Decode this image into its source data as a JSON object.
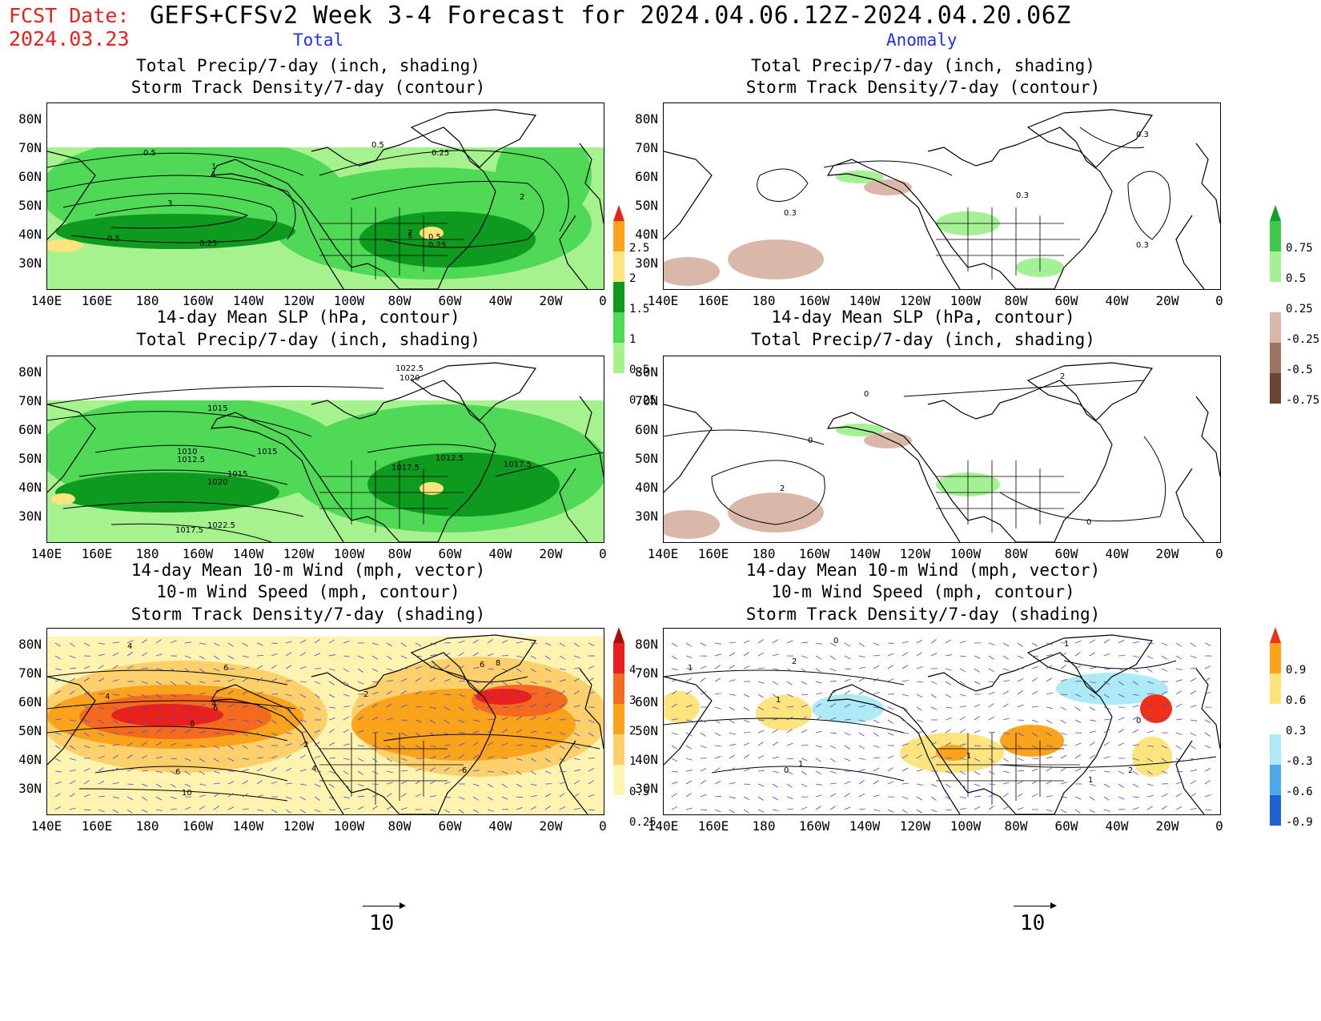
{
  "header": {
    "fcst_label": "FCST Date:",
    "fcst_date": "2024.03.23",
    "title": "GEFS+CFSv2 Week 3-4 Forecast for 2024.04.06.12Z-2024.04.20.06Z",
    "col_total": "Total",
    "col_anomaly": "Anomaly"
  },
  "axes": {
    "lat_labels": [
      "80N",
      "70N",
      "60N",
      "50N",
      "40N",
      "30N"
    ],
    "lon_labels": [
      "140E",
      "160E",
      "180",
      "160W",
      "140W",
      "120W",
      "100W",
      "80W",
      "60W",
      "40W",
      "20W",
      "0"
    ]
  },
  "panels": {
    "p1": {
      "title1": "Total Precip/7-day (inch, shading)",
      "title2": "Storm Track Density/7-day (contour)"
    },
    "p2": {
      "title1": "Total Precip/7-day (inch, shading)",
      "title2": "Storm Track Density/7-day (contour)"
    },
    "p3": {
      "title1": "14-day Mean SLP (hPa, contour)",
      "title2": "Total Precip/7-day (inch, shading)"
    },
    "p4": {
      "title1": "14-day Mean SLP (hPa, contour)",
      "title2": "Total Precip/7-day (inch, shading)"
    },
    "p5": {
      "title1": "14-day Mean 10-m Wind (mph, vector)",
      "title2": "10-m Wind Speed (mph, contour)",
      "title3": "Storm Track Density/7-day (shading)"
    },
    "p6": {
      "title1": "14-day Mean 10-m Wind (mph, vector)",
      "title2": "10-m Wind Speed (mph, contour)",
      "title3": "Storm Track Density/7-day (shading)"
    }
  },
  "colorbars": {
    "precip_total": {
      "labels": [
        "2.5",
        "2",
        "1.5",
        "1",
        "0.5",
        "0.25"
      ],
      "colors": [
        "#e8201e",
        "#fba31b",
        "#fde47d",
        "#0e9a1e",
        "#4fd957",
        "#a6f28e",
        "#ffffff"
      ]
    },
    "precip_anom": {
      "labels": [
        "0.75",
        "0.5",
        "0.25",
        "-0.25",
        "-0.5",
        "-0.75"
      ],
      "colors": [
        "#169e2a",
        "#3ec94a",
        "#a4f094",
        "#ffffff",
        "#d9b8aa",
        "#9e7362",
        "#6b4433"
      ]
    },
    "storm_total": {
      "labels": [
        "4",
        "3",
        "2",
        "1",
        "0.5",
        "0.25"
      ],
      "colors": [
        "#a4120c",
        "#e8201e",
        "#f46a1f",
        "#fba31b",
        "#fdd06b",
        "#fef4b0",
        "#ffffff"
      ]
    },
    "storm_anom": {
      "labels": [
        "0.9",
        "0.6",
        "0.3",
        "-0.3",
        "-0.6",
        "-0.9"
      ],
      "colors": [
        "#f03018",
        "#fba31b",
        "#fde47d",
        "#ffffff",
        "#aee9f6",
        "#4fa9e8",
        "#1d62d0"
      ]
    }
  },
  "contour_labels": {
    "p1": [
      "0.5",
      "0.5",
      "0.25",
      "1",
      "1",
      "2",
      "3",
      "2",
      "0.5",
      "0.25",
      "1",
      "0.5",
      "0.25"
    ],
    "p2": [
      "0.3",
      "0.3",
      "0.3",
      "0.3"
    ],
    "p3": [
      "1022.5",
      "1020",
      "1015",
      "1015",
      "1010",
      "1012.5",
      "1015",
      "1017.5",
      "1012.5",
      "1017.5",
      "1020",
      "1017.5",
      "1022.5"
    ],
    "p4": [
      "2",
      "0",
      "0",
      "2",
      "0"
    ],
    "p5": [
      "4",
      "6",
      "4",
      "4",
      "6",
      "6",
      "2",
      "2",
      "6",
      "8",
      "6",
      "4",
      "6",
      "10"
    ],
    "p6": [
      "0",
      "1",
      "2",
      "1",
      "1",
      "0",
      "1",
      "1",
      "1",
      "2",
      "0"
    ]
  },
  "vector_ref": {
    "left": "10",
    "right": "10"
  }
}
